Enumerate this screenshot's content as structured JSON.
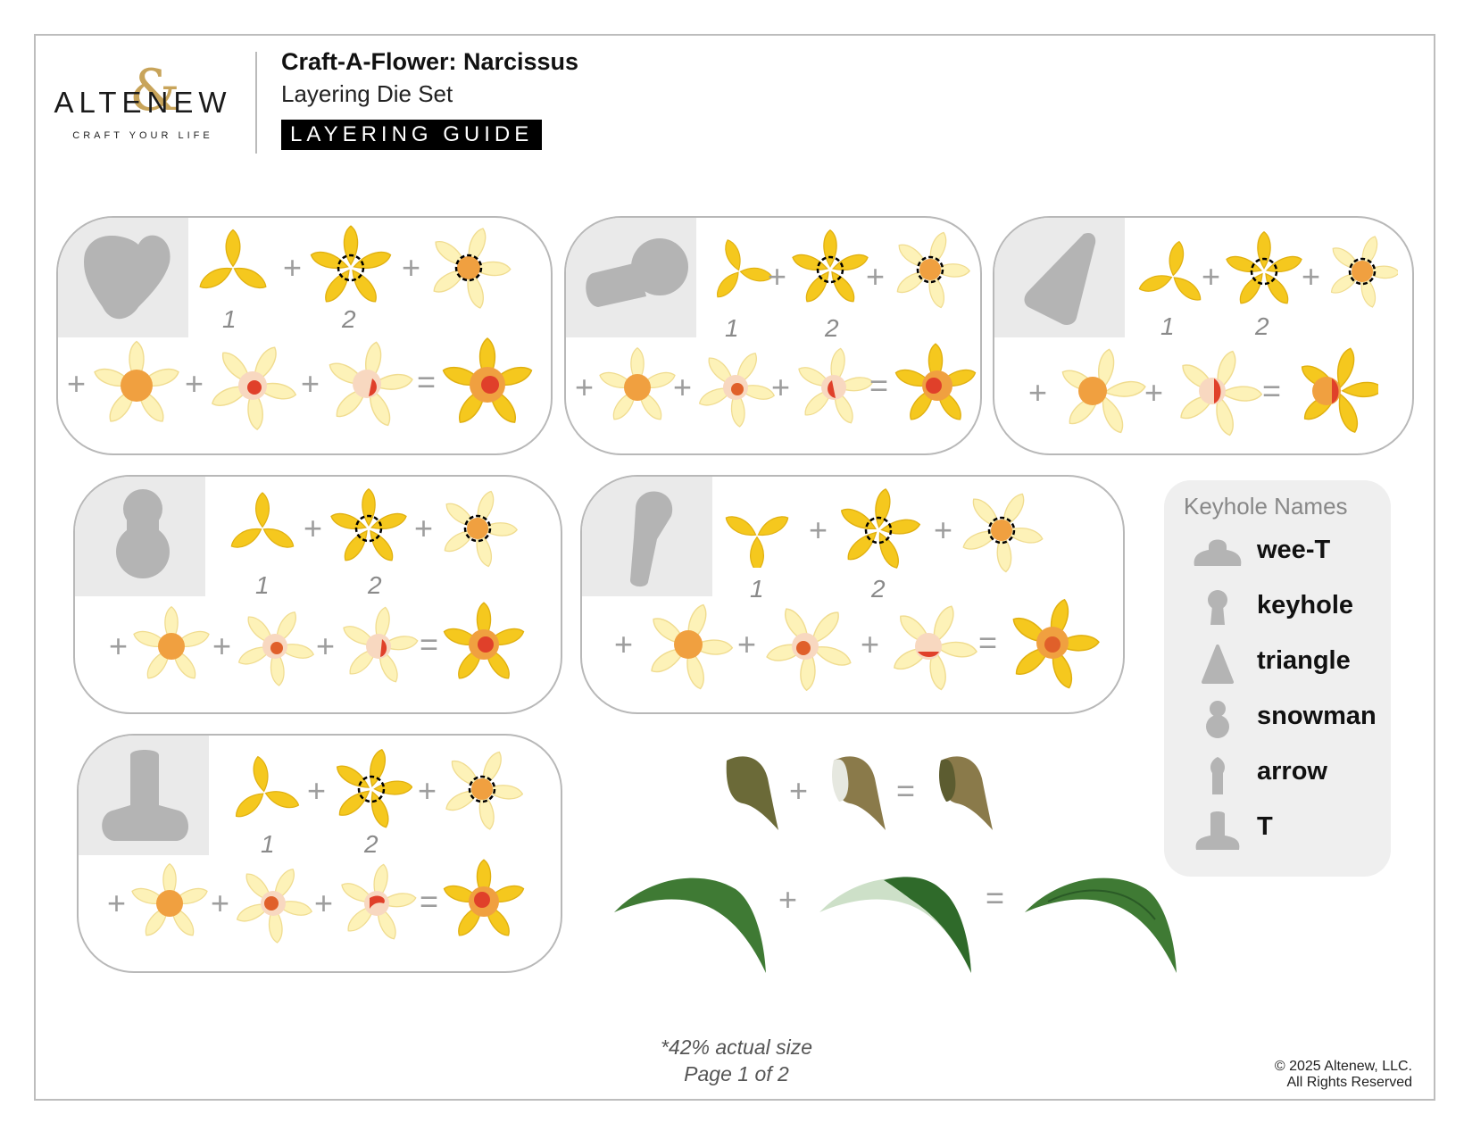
{
  "logo": {
    "brand": "ALTENEW",
    "tagline": "CRAFT YOUR LIFE"
  },
  "header": {
    "title": "Craft-A-Flower: Narcissus",
    "subtitle": "Layering Die Set",
    "badge": "LAYERING GUIDE"
  },
  "panels": [
    {
      "keyhole": "wee-T-icon",
      "layer_numbers": [
        "1",
        "2"
      ],
      "operators": [
        "+",
        "+",
        "+",
        "+",
        "+",
        "="
      ]
    },
    {
      "keyhole": "keyhole-icon",
      "layer_numbers": [
        "1",
        "2"
      ],
      "operators": [
        "+",
        "+",
        "+",
        "+",
        "+",
        "="
      ]
    },
    {
      "keyhole": "triangle-icon",
      "layer_numbers": [
        "1",
        "2"
      ],
      "operators": [
        "+",
        "+",
        "+",
        "+",
        "="
      ]
    },
    {
      "keyhole": "snowman-icon",
      "layer_numbers": [
        "1",
        "2"
      ],
      "operators": [
        "+",
        "+",
        "+",
        "+",
        "+",
        "="
      ]
    },
    {
      "keyhole": "arrow-icon",
      "layer_numbers": [
        "1",
        "2"
      ],
      "operators": [
        "+",
        "+",
        "+",
        "+",
        "+",
        "="
      ]
    },
    {
      "keyhole": "T-icon",
      "layer_numbers": [
        "1",
        "2"
      ],
      "operators": [
        "+",
        "+",
        "+",
        "+",
        "+",
        "="
      ]
    }
  ],
  "leaves": {
    "operators": [
      "+",
      "=",
      "+",
      "="
    ]
  },
  "legend": {
    "title": "Keyhole Names",
    "items": [
      {
        "label": "wee-T",
        "icon": "wee-T-icon"
      },
      {
        "label": "keyhole",
        "icon": "keyhole-icon"
      },
      {
        "label": "triangle",
        "icon": "triangle-icon"
      },
      {
        "label": "snowman",
        "icon": "snowman-icon"
      },
      {
        "label": "arrow",
        "icon": "arrow-icon"
      },
      {
        "label": "T",
        "icon": "T-icon"
      }
    ]
  },
  "footer": {
    "scale_note": "*42% actual size",
    "page": "Page 1 of 2",
    "copyright": "© 2025 Altenew, LLC.",
    "rights": "All Rights Reserved"
  },
  "colors": {
    "petal_dark": "#f5c81e",
    "petal_light": "#fdf2b8",
    "cup_orange": "#f0a040",
    "cup_red": "#e0402a",
    "keyhole_gray": "#b4b4b4",
    "panel_border": "#b8b8b8",
    "leaf_green": "#3f7a34",
    "husk_brown": "#8a7a4a"
  }
}
